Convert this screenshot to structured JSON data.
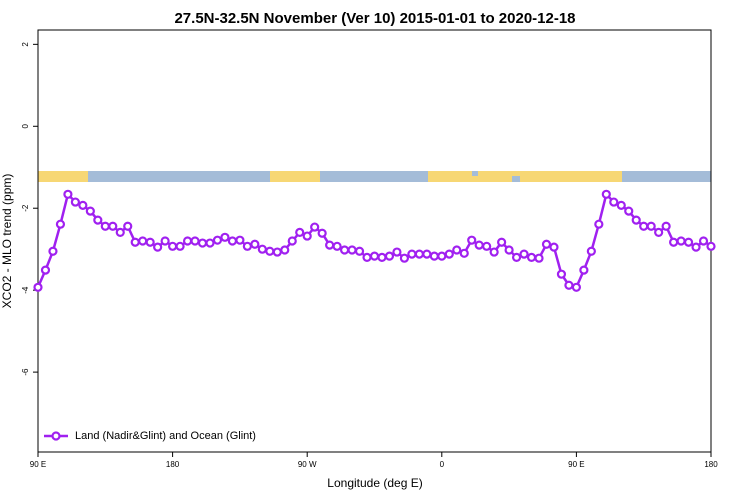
{
  "chart_data": {
    "type": "line",
    "title": "27.5N-32.5N November (Ver 10)   2015-01-01 to 2020-12-18",
    "x_label": "Longitude (deg E)",
    "y_label": "XCO2 - MLO trend (ppm)",
    "x": [
      90,
      95,
      100,
      105,
      110,
      115,
      120,
      125,
      130,
      135,
      140,
      145,
      150,
      155,
      160,
      165,
      170,
      175,
      180,
      185,
      190,
      195,
      200,
      205,
      210,
      215,
      220,
      225,
      230,
      235,
      240,
      245,
      250,
      255,
      260,
      265,
      270,
      275,
      280,
      285,
      290,
      295,
      300,
      305,
      310,
      315,
      320,
      325,
      330,
      335,
      340,
      345,
      350,
      355,
      360,
      365,
      370,
      375,
      380,
      385,
      390,
      395,
      400,
      405,
      410,
      415,
      420,
      425,
      430,
      435,
      440,
      445,
      450,
      455,
      460,
      465,
      470,
      475,
      480,
      485,
      490,
      495,
      500,
      505,
      510,
      515,
      520,
      525,
      530,
      535,
      540
    ],
    "series": [
      {
        "name": "Land (Nadir&Glint) and Ocean (Glint)",
        "color": "#a020f0",
        "values": [
          -3.93,
          -3.51,
          -3.05,
          -2.39,
          -1.66,
          -1.85,
          -1.93,
          -2.07,
          -2.29,
          -2.44,
          -2.44,
          -2.59,
          -2.44,
          -2.83,
          -2.8,
          -2.83,
          -2.95,
          -2.8,
          -2.93,
          -2.93,
          -2.8,
          -2.8,
          -2.85,
          -2.85,
          -2.78,
          -2.71,
          -2.8,
          -2.78,
          -2.93,
          -2.88,
          -3.0,
          -3.05,
          -3.07,
          -3.02,
          -2.8,
          -2.59,
          -2.68,
          -2.46,
          -2.61,
          -2.9,
          -2.93,
          -3.02,
          -3.02,
          -3.05,
          -3.2,
          -3.17,
          -3.2,
          -3.17,
          -3.07,
          -3.22,
          -3.12,
          -3.12,
          -3.12,
          -3.17,
          -3.17,
          -3.12,
          -3.02,
          -3.1,
          -2.78,
          -2.9,
          -2.93,
          -3.07,
          -2.83,
          -3.02,
          -3.2,
          -3.12,
          -3.2,
          -3.22,
          -2.88,
          -2.95,
          -3.61,
          -3.88,
          -3.93,
          -3.51,
          -3.05,
          -2.39,
          -1.66,
          -1.85,
          -1.93,
          -2.07,
          -2.29,
          -2.44,
          -2.44,
          -2.59,
          -2.44,
          -2.83,
          -2.8,
          -2.83,
          -2.95,
          -2.8,
          -2.93
        ]
      }
    ],
    "xlim": [
      90,
      540
    ],
    "xticks": [
      {
        "value": 90,
        "label": "90 E"
      },
      180,
      {
        "value": 270,
        "label": "90 W"
      },
      {
        "value": 360,
        "label": "0"
      },
      {
        "value": 450,
        "label": "90 E"
      },
      {
        "value": 540,
        "label": "180"
      }
    ],
    "ylim": [
      -7.95,
      2.35
    ],
    "yticks": [
      2,
      0,
      -2,
      -4,
      -6
    ],
    "legend": "bottomleft"
  }
}
